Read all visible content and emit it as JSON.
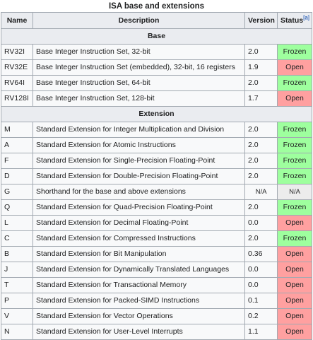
{
  "caption": "ISA base and extensions",
  "headers": {
    "name": "Name",
    "description": "Description",
    "version": "Version",
    "status": "Status",
    "status_ref": "[a]"
  },
  "sections": [
    {
      "title": "Base",
      "rows": [
        {
          "name": "RV32I",
          "description": "Base Integer Instruction Set, 32-bit",
          "version": "2.0",
          "status": "Frozen"
        },
        {
          "name": "RV32E",
          "description": "Base Integer Instruction Set (embedded), 32-bit, 16 registers",
          "version": "1.9",
          "status": "Open"
        },
        {
          "name": "RV64I",
          "description": "Base Integer Instruction Set, 64-bit",
          "version": "2.0",
          "status": "Frozen"
        },
        {
          "name": "RV128I",
          "description": "Base Integer Instruction Set, 128-bit",
          "version": "1.7",
          "status": "Open"
        }
      ]
    },
    {
      "title": "Extension",
      "rows": [
        {
          "name": "M",
          "description": "Standard Extension for Integer Multiplication and Division",
          "version": "2.0",
          "status": "Frozen"
        },
        {
          "name": "A",
          "description": "Standard Extension for Atomic Instructions",
          "version": "2.0",
          "status": "Frozen"
        },
        {
          "name": "F",
          "description": "Standard Extension for Single-Precision Floating-Point",
          "version": "2.0",
          "status": "Frozen"
        },
        {
          "name": "D",
          "description": "Standard Extension for Double-Precision Floating-Point",
          "version": "2.0",
          "status": "Frozen"
        },
        {
          "name": "G",
          "description": "Shorthand for the base and above extensions",
          "version": "N/A",
          "status": "N/A"
        },
        {
          "name": "Q",
          "description": "Standard Extension for Quad-Precision Floating-Point",
          "version": "2.0",
          "status": "Frozen"
        },
        {
          "name": "L",
          "description": "Standard Extension for Decimal Floating-Point",
          "version": "0.0",
          "status": "Open"
        },
        {
          "name": "C",
          "description": "Standard Extension for Compressed Instructions",
          "version": "2.0",
          "status": "Frozen"
        },
        {
          "name": "B",
          "description": "Standard Extension for Bit Manipulation",
          "version": "0.36",
          "status": "Open"
        },
        {
          "name": "J",
          "description": "Standard Extension for Dynamically Translated Languages",
          "version": "0.0",
          "status": "Open"
        },
        {
          "name": "T",
          "description": "Standard Extension for Transactional Memory",
          "version": "0.0",
          "status": "Open"
        },
        {
          "name": "P",
          "description": "Standard Extension for Packed-SIMD Instructions",
          "version": "0.1",
          "status": "Open"
        },
        {
          "name": "V",
          "description": "Standard Extension for Vector Operations",
          "version": "0.2",
          "status": "Open"
        },
        {
          "name": "N",
          "description": "Standard Extension for User-Level Interrupts",
          "version": "1.1",
          "status": "Open"
        }
      ]
    }
  ],
  "colors": {
    "frozen": "#9eff9e",
    "open": "#ffa0a0",
    "na": "#ececec",
    "header_bg": "#eaecf0",
    "cell_bg": "#f8f9fa",
    "border": "#a2a9b1",
    "link": "#0645ad"
  }
}
